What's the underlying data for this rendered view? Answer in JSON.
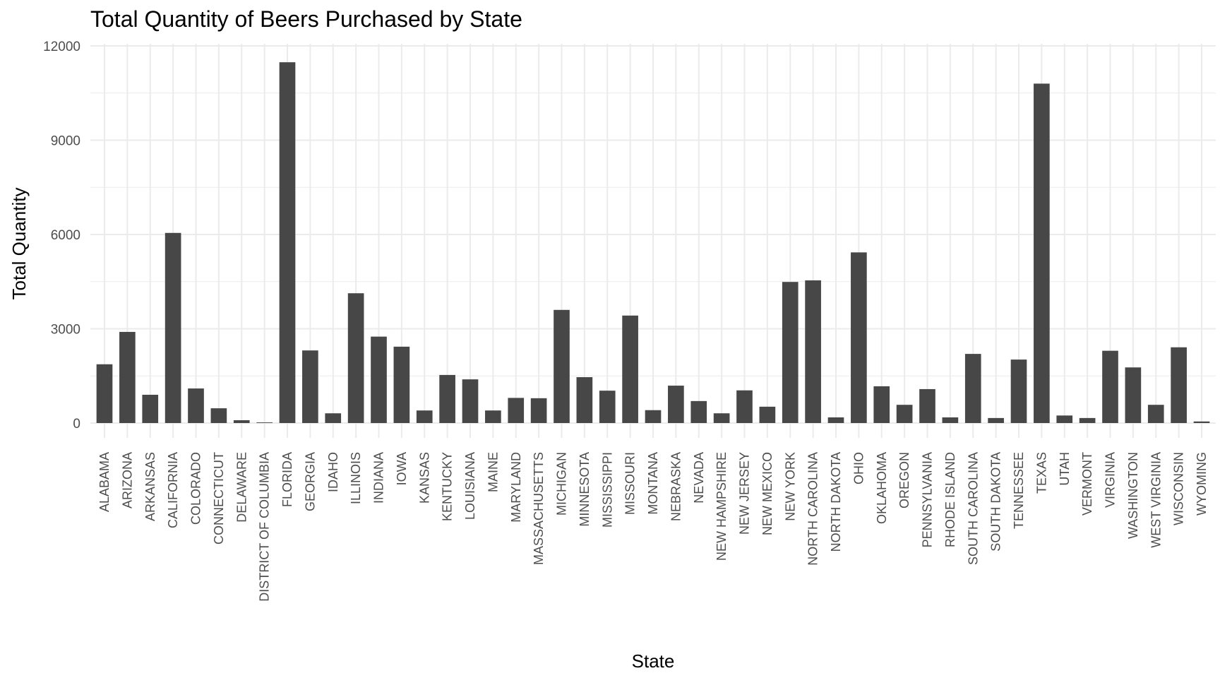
{
  "chart_data": {
    "type": "bar",
    "title": "Total Quantity of Beers Purchased by State",
    "xlabel": "State",
    "ylabel": "Total Quantity",
    "ylim": [
      -600,
      12000
    ],
    "yticks": [
      0,
      3000,
      6000,
      9000,
      12000
    ],
    "grid": true,
    "legend": "none",
    "bar_color": "#474747",
    "categories": [
      "ALABAMA",
      "ARIZONA",
      "ARKANSAS",
      "CALIFORNIA",
      "COLORADO",
      "CONNECTICUT",
      "DELAWARE",
      "DISTRICT OF COLUMBIA",
      "FLORIDA",
      "GEORGIA",
      "IDAHO",
      "ILLINOIS",
      "INDIANA",
      "IOWA",
      "KANSAS",
      "KENTUCKY",
      "LOUISIANA",
      "MAINE",
      "MARYLAND",
      "MASSACHUSETTS",
      "MICHIGAN",
      "MINNESOTA",
      "MISSISSIPPI",
      "MISSOURI",
      "MONTANA",
      "NEBRASKA",
      "NEVADA",
      "NEW HAMPSHIRE",
      "NEW JERSEY",
      "NEW MEXICO",
      "NEW YORK",
      "NORTH CAROLINA",
      "NORTH DAKOTA",
      "OHIO",
      "OKLAHOMA",
      "OREGON",
      "PENNSYLVANIA",
      "RHODE ISLAND",
      "SOUTH CAROLINA",
      "SOUTH DAKOTA",
      "TENNESSEE",
      "TEXAS",
      "UTAH",
      "VERMONT",
      "VIRGINIA",
      "WASHINGTON",
      "WEST VIRGINIA",
      "WISCONSIN",
      "WYOMING"
    ],
    "values": [
      1870,
      2900,
      900,
      6050,
      1100,
      470,
      90,
      20,
      11480,
      2310,
      310,
      4130,
      2750,
      2430,
      400,
      1530,
      1390,
      400,
      800,
      790,
      3600,
      1460,
      1030,
      3420,
      410,
      1190,
      700,
      310,
      1040,
      520,
      4490,
      4540,
      180,
      5430,
      1170,
      580,
      1080,
      180,
      2200,
      160,
      2020,
      10800,
      240,
      160,
      2300,
      1770,
      580,
      2410,
      50
    ]
  }
}
